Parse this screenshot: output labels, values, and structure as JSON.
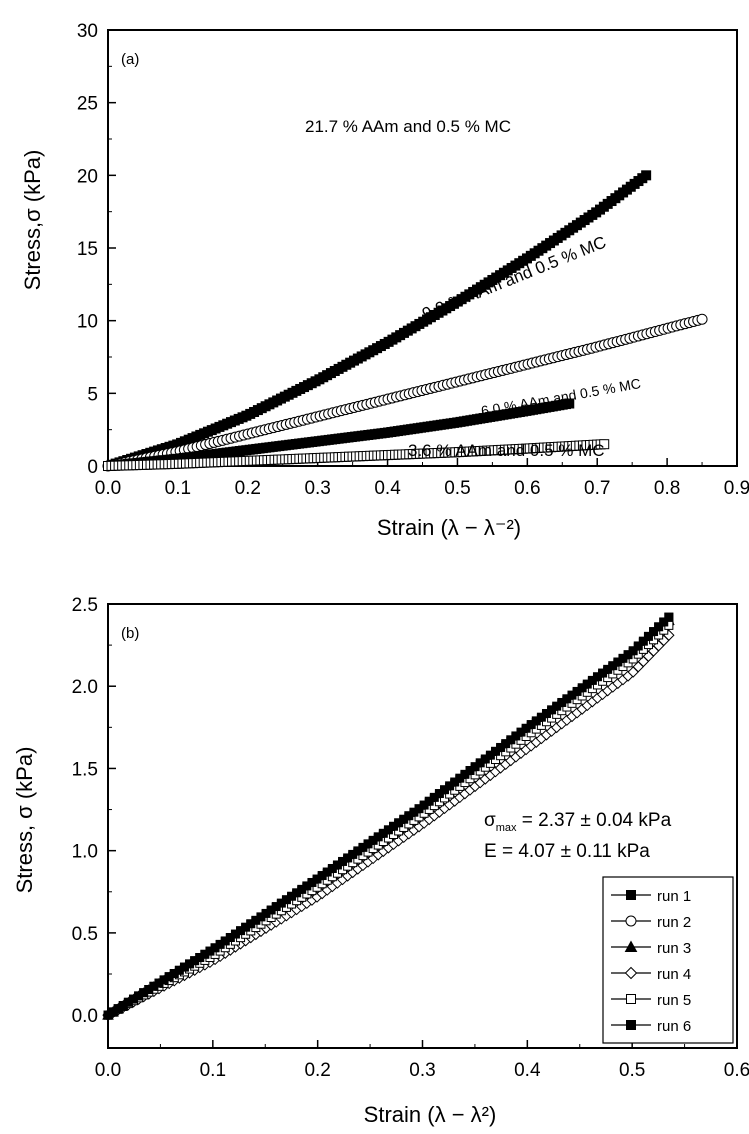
{
  "chart_data": [
    {
      "type": "scatter",
      "panel_label": "(a)",
      "xlabel": "Strain (λ − λ⁻²)",
      "ylabel": "Stress,σ (kPa)",
      "xlim": [
        0,
        0.9
      ],
      "ylim": [
        0,
        30
      ],
      "xticks": [
        "0.0",
        "0.1",
        "0.2",
        "0.3",
        "0.4",
        "0.5",
        "0.6",
        "0.7",
        "0.8",
        "0.9"
      ],
      "yticks": [
        "0",
        "5",
        "10",
        "15",
        "20",
        "25",
        "30"
      ],
      "grid": false,
      "series": [
        {
          "name": "21.7 % AAm and 0.5 % MC",
          "marker": "filled-square",
          "x": [
            0,
            0.1,
            0.2,
            0.3,
            0.4,
            0.5,
            0.6,
            0.7,
            0.77
          ],
          "y": [
            0,
            1.5,
            3.5,
            5.9,
            8.5,
            11.3,
            14.3,
            17.5,
            20.0
          ]
        },
        {
          "name": "9.0 % AAm and 0.5 % MC",
          "marker": "open-circle",
          "x": [
            0,
            0.1,
            0.2,
            0.3,
            0.4,
            0.5,
            0.6,
            0.7,
            0.85
          ],
          "y": [
            0,
            1.0,
            2.2,
            3.4,
            4.6,
            5.8,
            7.0,
            8.2,
            10.1
          ]
        },
        {
          "name": "6.0 % AAm and 0.5 % MC",
          "marker": "filled-square",
          "x": [
            0,
            0.1,
            0.2,
            0.3,
            0.4,
            0.5,
            0.6,
            0.66
          ],
          "y": [
            0,
            0.5,
            1.1,
            1.7,
            2.3,
            3.0,
            3.8,
            4.3
          ]
        },
        {
          "name": "3.6 % AAm and 0.5 % MC",
          "marker": "open-square",
          "x": [
            0,
            0.1,
            0.2,
            0.3,
            0.4,
            0.5,
            0.6,
            0.71
          ],
          "y": [
            0,
            0.15,
            0.35,
            0.55,
            0.75,
            0.95,
            1.2,
            1.5
          ]
        }
      ],
      "annotations": [
        "21.7 % AAm and 0.5 % MC",
        "9.0 % AAm and 0.5 % MC",
        "6.0 % AAm and 0.5 % MC",
        "3.6 % AAm and 0.5 % MC"
      ]
    },
    {
      "type": "scatter",
      "panel_label": "(b)",
      "xlabel": "Strain (λ − λ²)",
      "ylabel": "Stress, σ (kPa)",
      "xlim": [
        0,
        0.6
      ],
      "ylim": [
        -0.2,
        2.5
      ],
      "xticks": [
        "0.0",
        "0.1",
        "0.2",
        "0.3",
        "0.4",
        "0.5",
        "0.6"
      ],
      "yticks": [
        "0.0",
        "0.5",
        "1.0",
        "1.5",
        "2.0",
        "2.5"
      ],
      "grid": false,
      "legend_position": "bottom-right",
      "stats": {
        "sigma_symbol": "σ",
        "sigma_sub": "max",
        "sigma_value": " = 2.37 ± 0.04 kPa",
        "modulus": "E = 4.07 ± 0.11 kPa"
      },
      "series": [
        {
          "name": "run 1",
          "marker": "filled-square",
          "x": [
            0,
            0.1,
            0.2,
            0.3,
            0.4,
            0.5,
            0.535
          ],
          "y": [
            0,
            0.4,
            0.82,
            1.26,
            1.74,
            2.2,
            2.42
          ]
        },
        {
          "name": "run 2",
          "marker": "open-circle",
          "x": [
            0,
            0.1,
            0.2,
            0.3,
            0.4,
            0.5,
            0.535
          ],
          "y": [
            0,
            0.38,
            0.8,
            1.24,
            1.72,
            2.18,
            2.38
          ]
        },
        {
          "name": "run 3",
          "marker": "filled-triangle",
          "x": [
            0,
            0.1,
            0.2,
            0.3,
            0.4,
            0.5,
            0.535
          ],
          "y": [
            0,
            0.39,
            0.81,
            1.25,
            1.73,
            2.19,
            2.4
          ]
        },
        {
          "name": "run 4",
          "marker": "open-diamond",
          "x": [
            0,
            0.1,
            0.2,
            0.3,
            0.4,
            0.5,
            0.535
          ],
          "y": [
            0,
            0.33,
            0.72,
            1.16,
            1.62,
            2.08,
            2.31
          ]
        },
        {
          "name": "run 5",
          "marker": "open-square",
          "x": [
            0,
            0.1,
            0.2,
            0.3,
            0.4,
            0.5,
            0.535
          ],
          "y": [
            0,
            0.36,
            0.78,
            1.22,
            1.7,
            2.16,
            2.37
          ]
        },
        {
          "name": "run 6",
          "marker": "filled-square",
          "x": [
            0,
            0.1,
            0.2,
            0.3,
            0.4,
            0.5,
            0.535
          ],
          "y": [
            0,
            0.4,
            0.83,
            1.27,
            1.75,
            2.21,
            2.42
          ]
        }
      ]
    }
  ]
}
